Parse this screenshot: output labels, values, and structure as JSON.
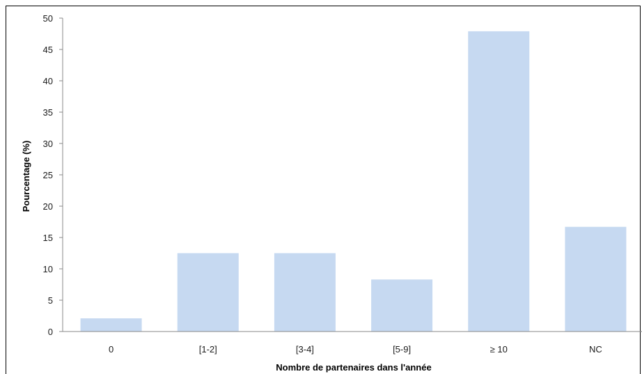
{
  "chart_data": {
    "type": "bar",
    "categories": [
      "0",
      "[1-2]",
      "[3-4]",
      "[5-9]",
      "≥ 10",
      "NC"
    ],
    "values": [
      2.1,
      12.5,
      12.5,
      8.3,
      47.9,
      16.7
    ],
    "title": "",
    "xlabel": "Nombre de partenaires dans l'année",
    "ylabel": "Pourcentage (%)",
    "ylim": [
      0,
      50
    ],
    "yticks": [
      0,
      5,
      10,
      15,
      20,
      25,
      30,
      35,
      40,
      45,
      50
    ],
    "grid": false,
    "legend": "none",
    "bar_color": "#c6d9f1"
  }
}
